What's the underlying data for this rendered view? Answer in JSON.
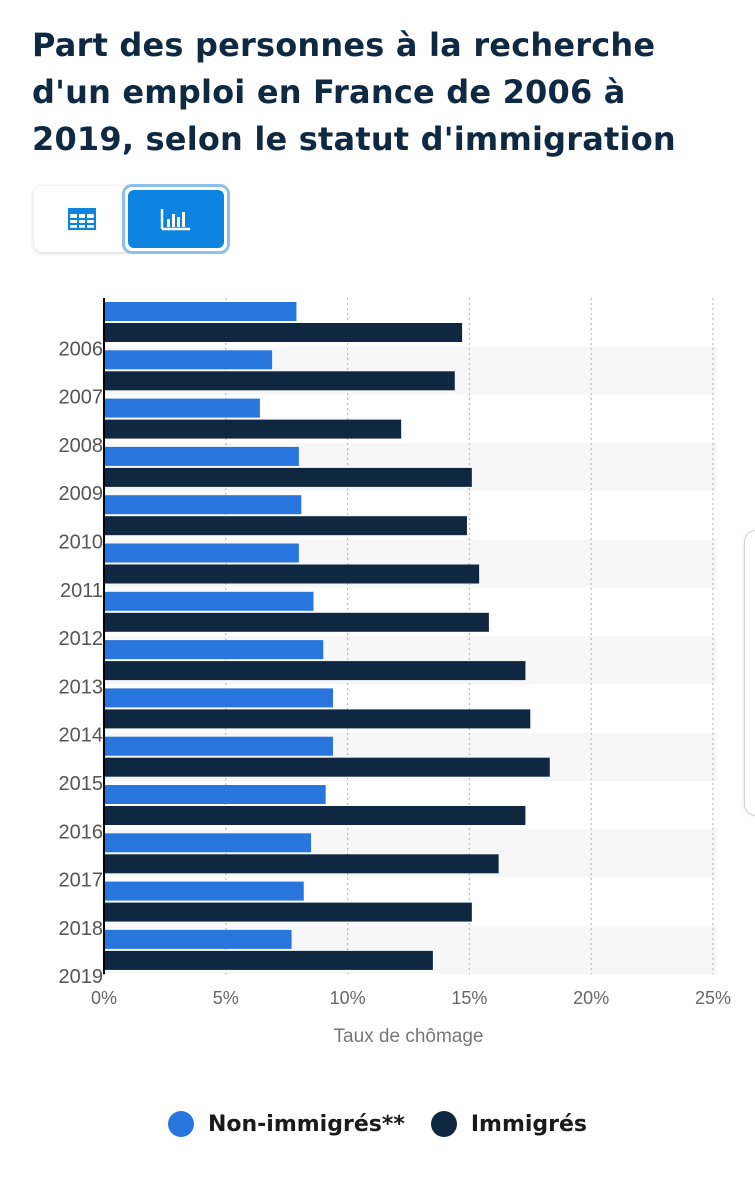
{
  "title": "Part des personnes à la recherche d'un emploi en France de 2006 à 2019, selon le statut d'immigration",
  "view_toggle": {
    "table_icon": "table-icon",
    "chart_icon": "bar-chart-icon",
    "active": "chart"
  },
  "chart_data": {
    "type": "bar",
    "orientation": "horizontal",
    "categories": [
      "2006",
      "2007",
      "2008",
      "2009",
      "2010",
      "2011",
      "2012",
      "2013",
      "2014",
      "2015",
      "2016",
      "2017",
      "2018",
      "2019"
    ],
    "series": [
      {
        "name": "Non-immigrés**",
        "color": "#2876dd",
        "values": [
          7.9,
          6.9,
          6.4,
          8.0,
          8.1,
          8.0,
          8.6,
          9.0,
          9.4,
          9.4,
          9.1,
          8.5,
          8.2,
          7.7
        ]
      },
      {
        "name": "Immigrés",
        "color": "#0f2740",
        "values": [
          14.7,
          14.4,
          12.2,
          15.1,
          14.9,
          15.4,
          15.8,
          17.3,
          17.5,
          18.3,
          17.3,
          16.2,
          15.1,
          13.5
        ]
      }
    ],
    "xlabel": "Taux de chômage",
    "xlim": [
      0,
      25
    ],
    "xticks": [
      "0%",
      "5%",
      "10%",
      "15%",
      "20%",
      "25%"
    ],
    "grid": true,
    "legend": "bottom"
  }
}
